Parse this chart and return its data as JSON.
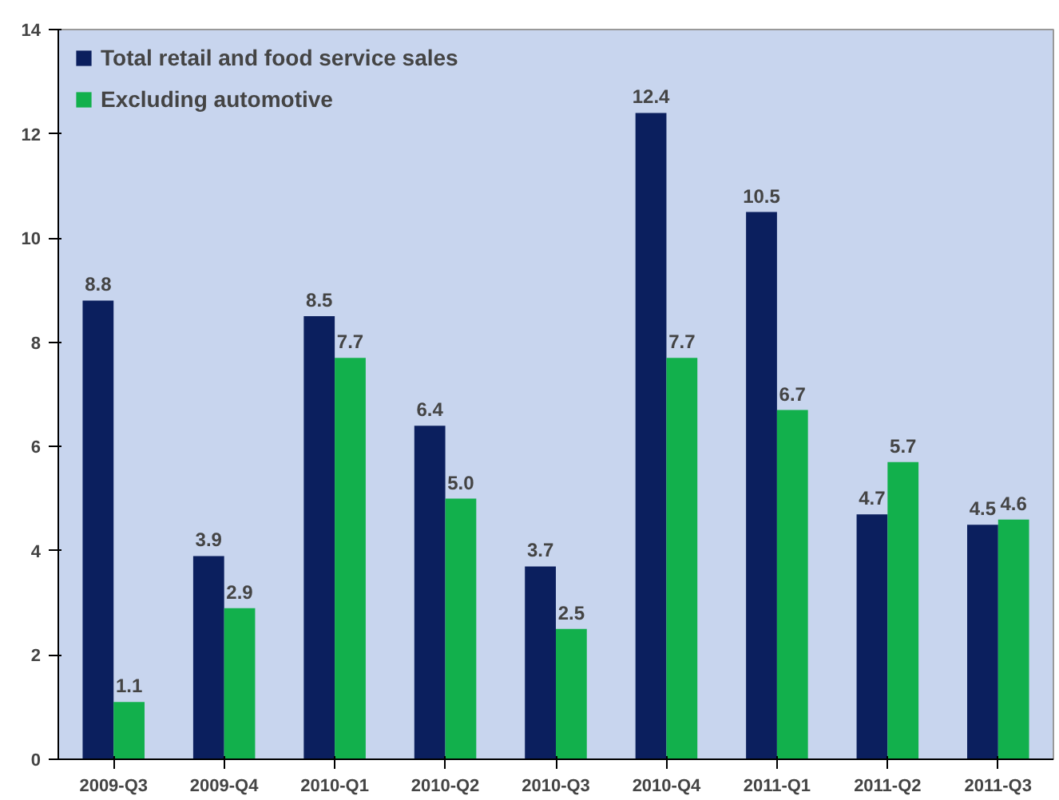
{
  "chart_data": {
    "type": "bar",
    "categories": [
      "2009-Q3",
      "2009-Q4",
      "2010-Q1",
      "2010-Q2",
      "2010-Q3",
      "2010-Q4",
      "2011-Q1",
      "2011-Q2",
      "2011-Q3"
    ],
    "series": [
      {
        "name": "Total retail and food service sales",
        "color": "#0b1f5e",
        "values": [
          8.8,
          3.9,
          8.5,
          6.4,
          3.7,
          12.4,
          10.5,
          4.7,
          4.5
        ],
        "value_labels": [
          "8.8",
          "3.9",
          "8.5",
          "6.4",
          "3.7",
          "12.4",
          "10.5",
          "4.7",
          "4.5"
        ]
      },
      {
        "name": "Excluding automotive",
        "color": "#12b04c",
        "values": [
          1.1,
          2.9,
          7.7,
          5.0,
          2.5,
          7.7,
          6.7,
          5.7,
          4.6
        ],
        "value_labels": [
          "1.1",
          "2.9",
          "7.7",
          "5.0",
          "2.5",
          "7.7",
          "6.7",
          "5.7",
          "4.6"
        ]
      }
    ],
    "ylim": [
      0,
      14
    ],
    "yticks": [
      0,
      2,
      4,
      6,
      8,
      10,
      12,
      14
    ],
    "grid": false,
    "legend": "top left"
  }
}
